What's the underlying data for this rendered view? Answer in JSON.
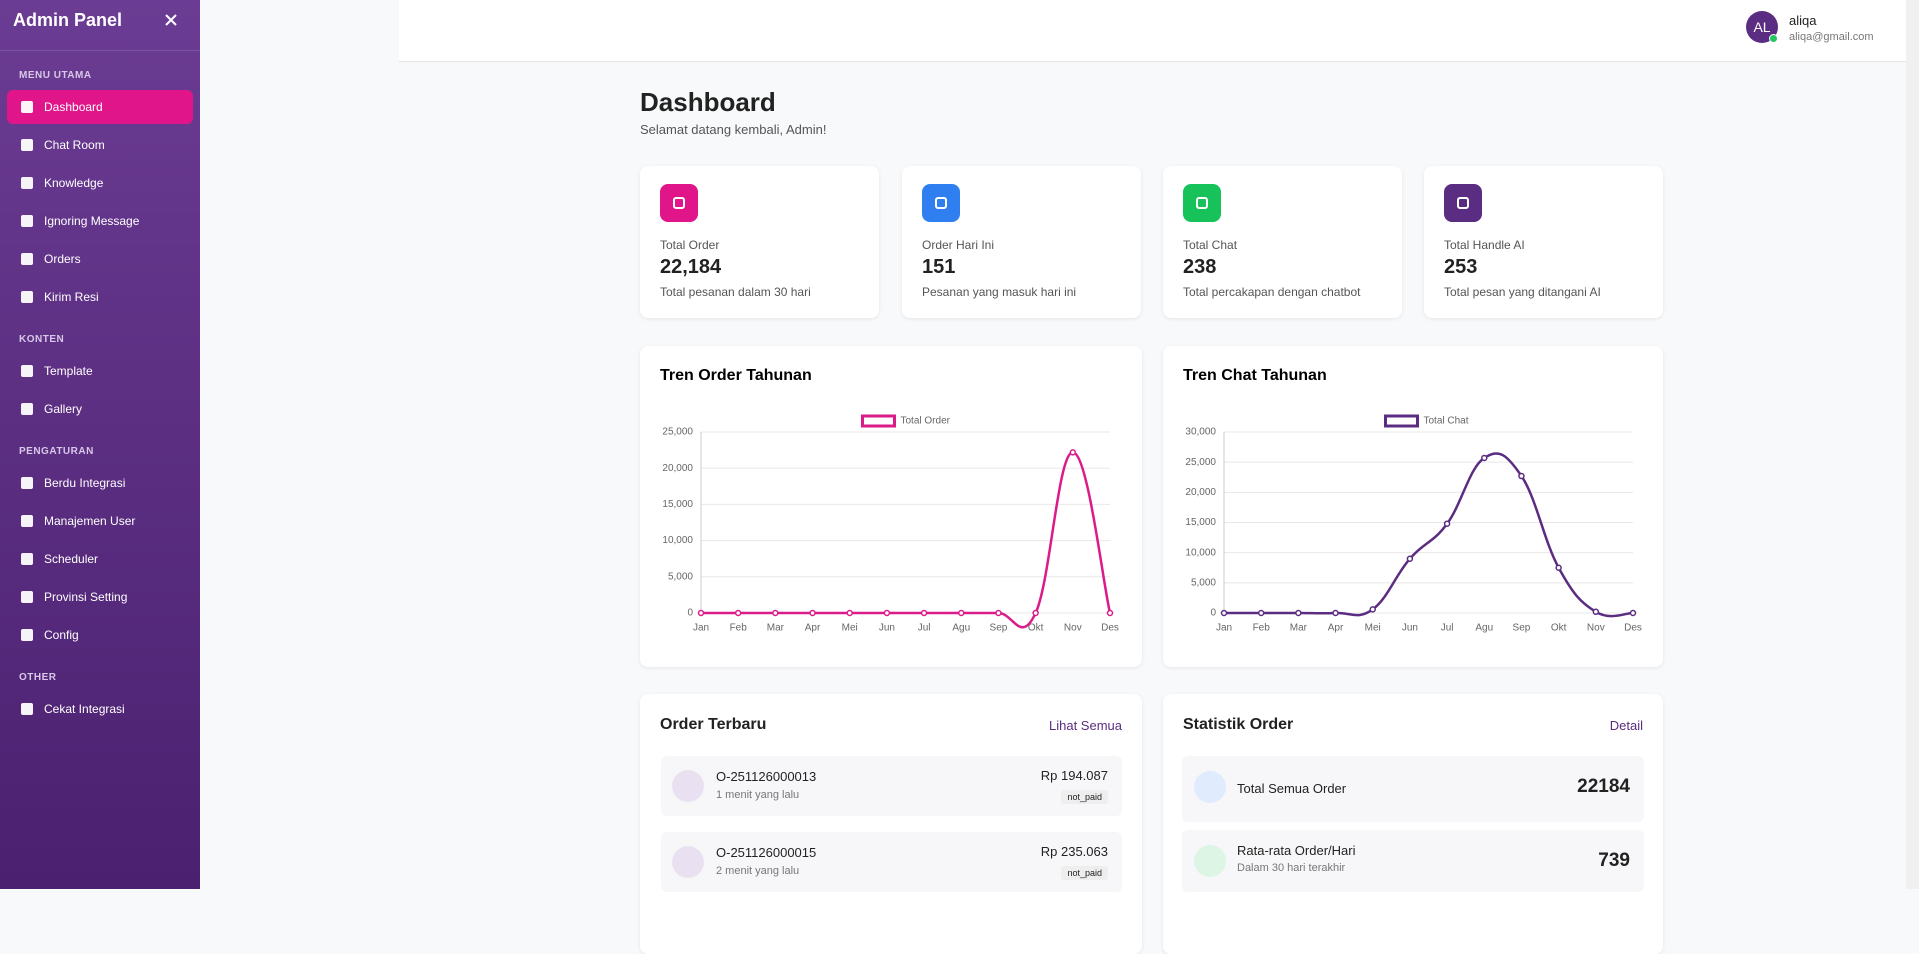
{
  "sidebar": {
    "title": "Admin Panel",
    "sections": [
      {
        "label": "MENU UTAMA",
        "items": [
          "Dashboard",
          "Chat Room",
          "Knowledge",
          "Ignoring Message",
          "Orders",
          "Kirim Resi"
        ]
      },
      {
        "label": "KONTEN",
        "items": [
          "Template",
          "Gallery"
        ]
      },
      {
        "label": "PENGATURAN",
        "items": [
          "Berdu Integrasi",
          "Manajemen User",
          "Scheduler",
          "Provinsi Setting",
          "Config"
        ]
      },
      {
        "label": "OTHER",
        "items": [
          "Cekat Integrasi"
        ]
      }
    ]
  },
  "header": {
    "avatar": "AL",
    "name": "aliqa",
    "email": "aliqa@gmail.com"
  },
  "page": {
    "title": "Dashboard",
    "subtitle": "Selamat datang kembali, Admin!"
  },
  "stats": [
    {
      "label": "Total Order",
      "value": "22,184",
      "desc": "Total pesanan dalam 30 hari",
      "color": "#e0158a"
    },
    {
      "label": "Order Hari Ini",
      "value": "151",
      "desc": "Pesanan yang masuk hari ini",
      "color": "#2f7ff0"
    },
    {
      "label": "Total Chat",
      "value": "238",
      "desc": "Total percakapan dengan chatbot",
      "color": "#17c25a"
    },
    {
      "label": "Total Handle AI",
      "value": "253",
      "desc": "Total pesan yang ditangani AI",
      "color": "#5b2d82"
    }
  ],
  "chart_data": [
    {
      "type": "line",
      "title": "Tren Order Tahunan",
      "categories": [
        "Jan",
        "Feb",
        "Mar",
        "Apr",
        "Mei",
        "Jun",
        "Jul",
        "Agu",
        "Sep",
        "Okt",
        "Nov",
        "Des"
      ],
      "series": [
        {
          "name": "Total Order",
          "color": "#db1b8a",
          "values": [
            0,
            0,
            0,
            0,
            0,
            0,
            0,
            0,
            0,
            0,
            22184,
            0
          ]
        }
      ],
      "ylim": [
        0,
        25000
      ],
      "yticks": [
        0,
        {
          "value": 5000,
          "label": "5,000"
        },
        {
          "value": 10000,
          "label": "10,000"
        },
        {
          "value": 15000,
          "label": "15,000"
        },
        {
          "value": 20000,
          "label": "20,000"
        },
        {
          "value": 25000,
          "label": "25,000"
        }
      ],
      "grid": true
    },
    {
      "type": "line",
      "title": "Tren Chat Tahunan",
      "categories": [
        "Jan",
        "Feb",
        "Mar",
        "Apr",
        "Mei",
        "Jun",
        "Jul",
        "Agu",
        "Sep",
        "Okt",
        "Nov",
        "Des"
      ],
      "series": [
        {
          "name": "Total Chat",
          "color": "#5b2d82",
          "values": [
            0,
            0,
            0,
            0,
            600,
            9000,
            14800,
            25700,
            22700,
            7500,
            200,
            0
          ]
        }
      ],
      "ylim": [
        0,
        30000
      ],
      "yticks": [
        0,
        {
          "value": 5000,
          "label": "5,000"
        },
        {
          "value": 10000,
          "label": "10,000"
        },
        {
          "value": 15000,
          "label": "15,000"
        },
        {
          "value": 20000,
          "label": "20,000"
        },
        {
          "value": 25000,
          "label": "25,000"
        },
        {
          "value": 30000,
          "label": "30,000"
        }
      ],
      "grid": true
    }
  ],
  "orders": {
    "title": "Order Terbaru",
    "link": "Lihat Semua",
    "items": [
      {
        "id": "O-251126000013",
        "time": "1 menit yang lalu",
        "amount": "Rp 194.087",
        "status": "not_paid"
      },
      {
        "id": "O-251126000015",
        "time": "2 menit yang lalu",
        "amount": "Rp 235.063",
        "status": "not_paid"
      }
    ]
  },
  "order_stats": {
    "title": "Statistik Order",
    "link": "Detail",
    "items": [
      {
        "label": "Total Semua Order",
        "value": "22184"
      },
      {
        "label": "Rata-rata Order/Hari",
        "sub": "Dalam 30 hari terakhir",
        "value": "739"
      }
    ]
  }
}
